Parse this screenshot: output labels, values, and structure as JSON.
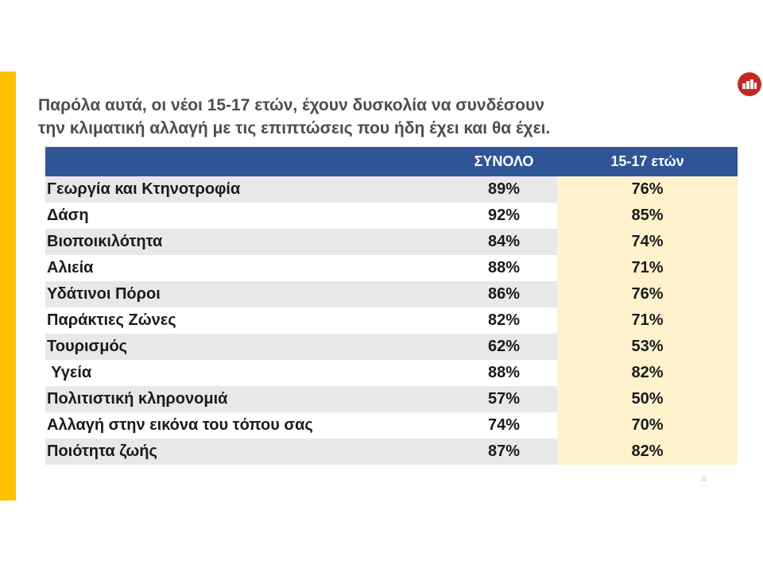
{
  "title": {
    "line1": "Παρόλα αυτά, οι νέοι 15-17 ετών, έχουν δυσκολία να συνδέσουν",
    "line2": "την κλιματική αλλαγή με τις επιπτώσεις που ήδη έχει και θα έχει."
  },
  "logo": {
    "icon": "organization-logo-icon",
    "color": "#c62828"
  },
  "colors": {
    "accent_bar": "#ffc000",
    "header_bg": "#2f5597",
    "youth_column_bg": "#fff2cc",
    "stripe": "#e8e8e8"
  },
  "table": {
    "headers": [
      "",
      "ΣΥΝΟΛΟ",
      "15-17 ετών"
    ],
    "rows": [
      {
        "label": "Γεωργία και Κτηνοτροφία",
        "total": "89%",
        "youth": "76%"
      },
      {
        "label": "Δάση",
        "total": "92%",
        "youth": "85%"
      },
      {
        "label": "Βιοποικιλότητα",
        "total": "84%",
        "youth": "74%"
      },
      {
        "label": "Αλιεία",
        "total": "88%",
        "youth": "71%"
      },
      {
        "label": "Υδάτινοι Πόροι",
        "total": "86%",
        "youth": "76%"
      },
      {
        "label": "Παράκτιες Ζώνες",
        "total": "82%",
        "youth": "71%"
      },
      {
        "label": "Τουρισμός",
        "total": "62%",
        "youth": "53%"
      },
      {
        "label": " Υγεία",
        "total": "88%",
        "youth": "82%"
      },
      {
        "label": "Πολιτιστική κληρονομιά",
        "total": "57%",
        "youth": "50%"
      },
      {
        "label": "Αλλαγή στην εικόνα του τόπου σας",
        "total": "74%",
        "youth": "70%"
      },
      {
        "label": "Ποιότητα ζωής",
        "total": "87%",
        "youth": "82%"
      }
    ]
  },
  "page_number": "25"
}
